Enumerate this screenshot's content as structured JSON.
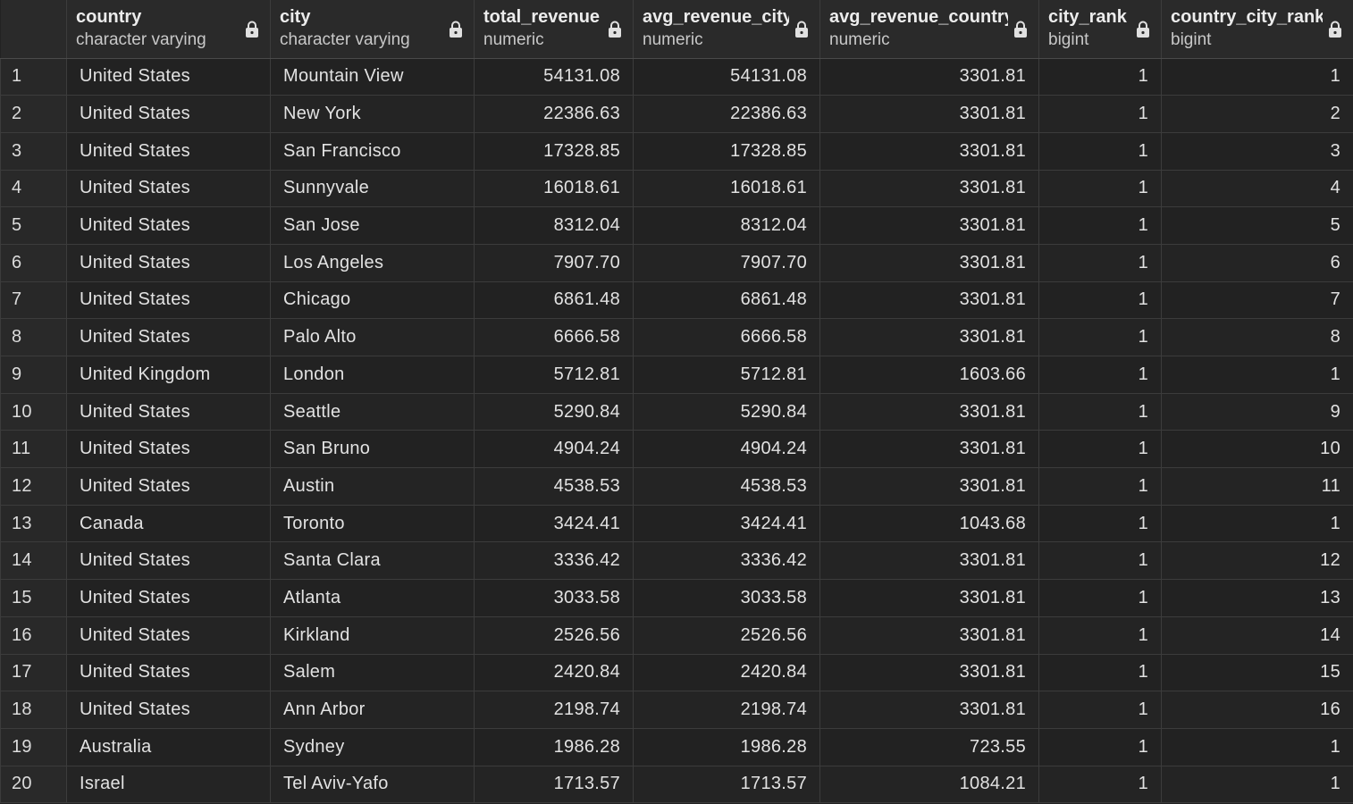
{
  "columns": [
    {
      "name": "country",
      "type": "character varying"
    },
    {
      "name": "city",
      "type": "character varying"
    },
    {
      "name": "total_revenue",
      "type": "numeric"
    },
    {
      "name": "avg_revenue_city",
      "type": "numeric"
    },
    {
      "name": "avg_revenue_country",
      "type": "numeric"
    },
    {
      "name": "city_rank",
      "type": "bigint"
    },
    {
      "name": "country_city_rank",
      "type": "bigint"
    }
  ],
  "column_icon": "lock-icon",
  "rows": [
    [
      "1",
      "United States",
      "Mountain View",
      "54131.08",
      "54131.08",
      "3301.81",
      "1",
      "1"
    ],
    [
      "2",
      "United States",
      "New York",
      "22386.63",
      "22386.63",
      "3301.81",
      "1",
      "2"
    ],
    [
      "3",
      "United States",
      "San Francisco",
      "17328.85",
      "17328.85",
      "3301.81",
      "1",
      "3"
    ],
    [
      "4",
      "United States",
      "Sunnyvale",
      "16018.61",
      "16018.61",
      "3301.81",
      "1",
      "4"
    ],
    [
      "5",
      "United States",
      "San Jose",
      "8312.04",
      "8312.04",
      "3301.81",
      "1",
      "5"
    ],
    [
      "6",
      "United States",
      "Los Angeles",
      "7907.70",
      "7907.70",
      "3301.81",
      "1",
      "6"
    ],
    [
      "7",
      "United States",
      "Chicago",
      "6861.48",
      "6861.48",
      "3301.81",
      "1",
      "7"
    ],
    [
      "8",
      "United States",
      "Palo Alto",
      "6666.58",
      "6666.58",
      "3301.81",
      "1",
      "8"
    ],
    [
      "9",
      "United Kingdom",
      "London",
      "5712.81",
      "5712.81",
      "1603.66",
      "1",
      "1"
    ],
    [
      "10",
      "United States",
      "Seattle",
      "5290.84",
      "5290.84",
      "3301.81",
      "1",
      "9"
    ],
    [
      "11",
      "United States",
      "San Bruno",
      "4904.24",
      "4904.24",
      "3301.81",
      "1",
      "10"
    ],
    [
      "12",
      "United States",
      "Austin",
      "4538.53",
      "4538.53",
      "3301.81",
      "1",
      "11"
    ],
    [
      "13",
      "Canada",
      "Toronto",
      "3424.41",
      "3424.41",
      "1043.68",
      "1",
      "1"
    ],
    [
      "14",
      "United States",
      "Santa Clara",
      "3336.42",
      "3336.42",
      "3301.81",
      "1",
      "12"
    ],
    [
      "15",
      "United States",
      "Atlanta",
      "3033.58",
      "3033.58",
      "3301.81",
      "1",
      "13"
    ],
    [
      "16",
      "United States",
      "Kirkland",
      "2526.56",
      "2526.56",
      "3301.81",
      "1",
      "14"
    ],
    [
      "17",
      "United States",
      "Salem",
      "2420.84",
      "2420.84",
      "3301.81",
      "1",
      "15"
    ],
    [
      "18",
      "United States",
      "Ann Arbor",
      "2198.74",
      "2198.74",
      "3301.81",
      "1",
      "16"
    ],
    [
      "19",
      "Australia",
      "Sydney",
      "1986.28",
      "1986.28",
      "723.55",
      "1",
      "1"
    ],
    [
      "20",
      "Israel",
      "Tel Aviv-Yafo",
      "1713.57",
      "1713.57",
      "1084.21",
      "1",
      "1"
    ]
  ]
}
